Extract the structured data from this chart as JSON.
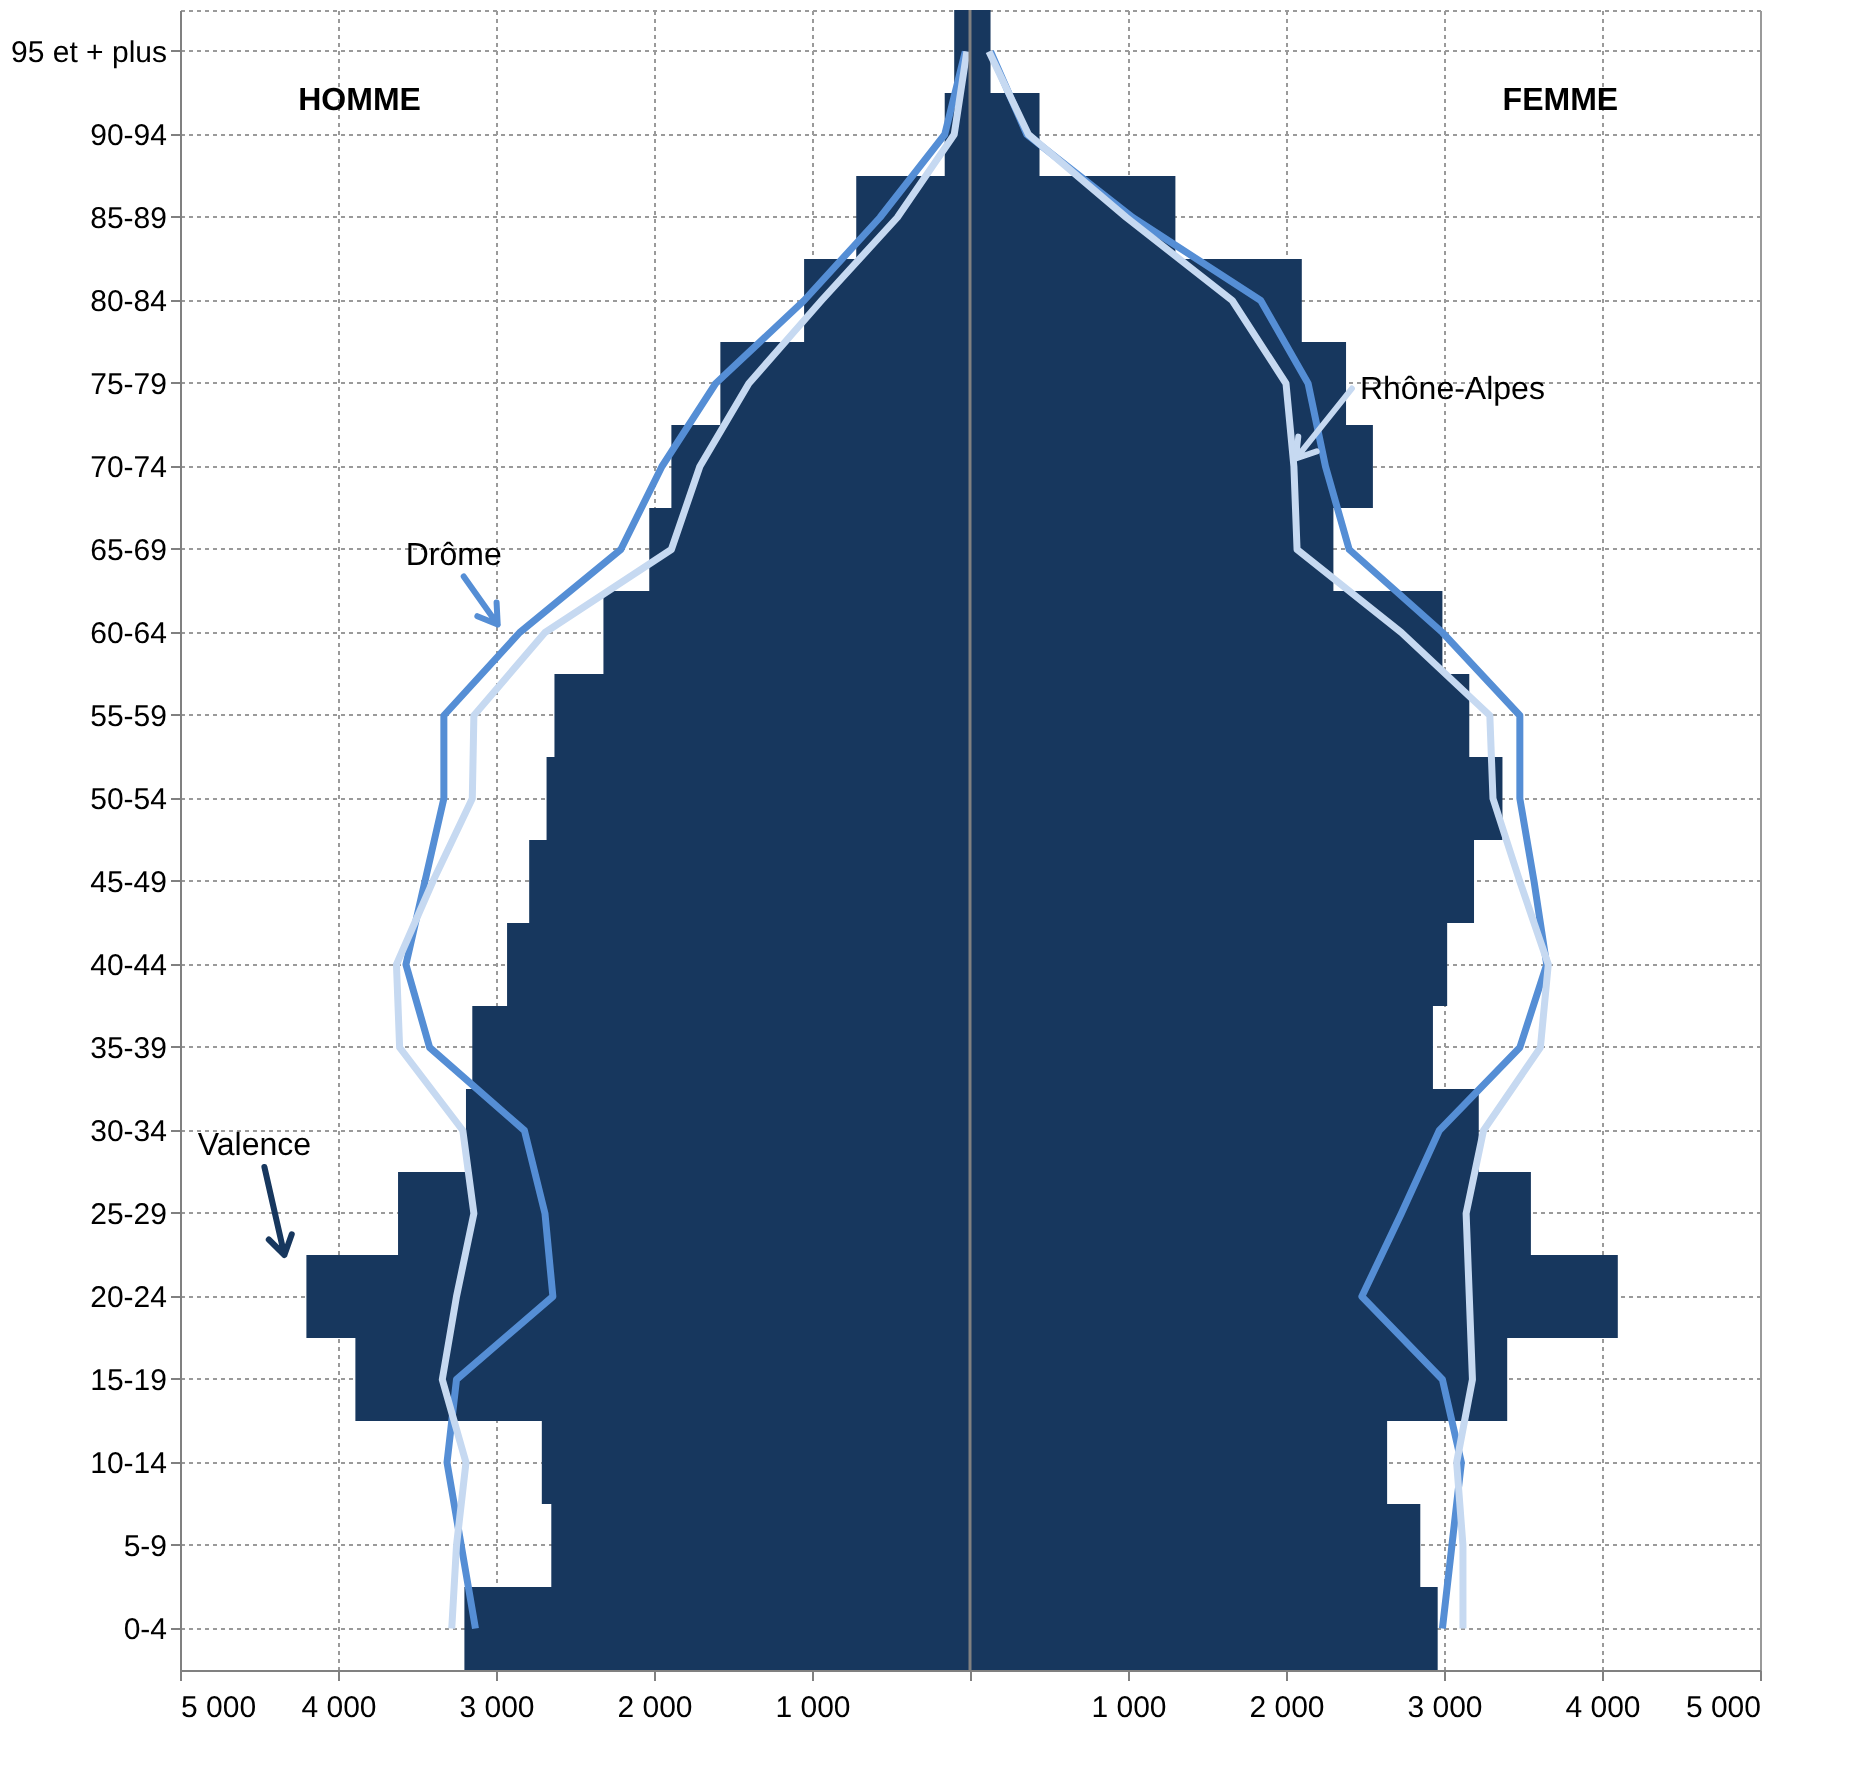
{
  "chart_data": {
    "type": "bar",
    "orientation": "horizontal",
    "categories": [
      "95 et + plus",
      "90-94",
      "85-89",
      "80-84",
      "75-79",
      "70-74",
      "65-69",
      "60-64",
      "55-59",
      "50-54",
      "45-49",
      "40-44",
      "35-39",
      "30-34",
      "25-29",
      "20-24",
      "15-19",
      "10-14",
      "5-9",
      "0-4"
    ],
    "series": [
      {
        "name": "Valence",
        "type": "bar",
        "color": "#17375e",
        "values": [
          -100,
          -160,
          -720,
          -1050,
          -1580,
          -1890,
          -2030,
          -2320,
          -2630,
          -2680,
          -2790,
          -2930,
          -3150,
          -3190,
          -3620,
          -4200,
          -3890,
          -2710,
          -2650,
          -3200
        ]
      },
      {
        "type": "bar",
        "color": "#17375e",
        "values": [
          130,
          440,
          1300,
          2100,
          2380,
          2550,
          2300,
          2990,
          3160,
          3370,
          3190,
          3020,
          2930,
          3220,
          3550,
          4100,
          3400,
          2640,
          2850,
          2960
        ]
      },
      {
        "name": "Drôme",
        "type": "line",
        "color": "#558ed5",
        "values": [
          -30,
          -160,
          -570,
          -1050,
          -1610,
          -1950,
          -2210,
          -2850,
          -3330,
          -3330,
          -3450,
          -3570,
          -3420,
          -2820,
          -2690,
          -2640,
          -3250,
          -3310,
          -3220,
          -3130
        ]
      },
      {
        "type": "line",
        "color": "#558ed5",
        "values": [
          130,
          360,
          1030,
          1840,
          2140,
          2250,
          2400,
          2990,
          3480,
          3480,
          3570,
          3650,
          3480,
          2970,
          2730,
          2480,
          2990,
          3110,
          3050,
          2990
        ]
      },
      {
        "type": "line",
        "color": "#c6d9f1",
        "values": [
          -20,
          -100,
          -460,
          -940,
          -1400,
          -1710,
          -1890,
          -2690,
          -3140,
          -3150,
          -3400,
          -3630,
          -3610,
          -3210,
          -3140,
          -3250,
          -3340,
          -3190,
          -3250,
          -3280
        ]
      },
      {
        "name": "Rhône-Alpes",
        "type": "line",
        "color": "#c6d9f1",
        "values": [
          120,
          370,
          990,
          1660,
          2000,
          2050,
          2070,
          2730,
          3290,
          3310,
          3480,
          3660,
          3610,
          3250,
          3140,
          3160,
          3180,
          3080,
          3120,
          3120
        ]
      }
    ],
    "xlim": [
      -5000,
      5000
    ],
    "xticks": [
      {
        "value": -5000,
        "label": "5 000"
      },
      {
        "value": -4000,
        "label": "4 000"
      },
      {
        "value": -3000,
        "label": "3 000"
      },
      {
        "value": -2000,
        "label": "2 000"
      },
      {
        "value": -1000,
        "label": "1 000"
      },
      {
        "value": 0,
        "label": null
      },
      {
        "value": 1000,
        "label": "1 000"
      },
      {
        "value": 2000,
        "label": "2 000"
      },
      {
        "value": 3000,
        "label": "3 000"
      },
      {
        "value": 4000,
        "label": "4 000"
      },
      {
        "value": 5000,
        "label": "5 000"
      }
    ],
    "ref_lines": [
      {
        "axis": "x",
        "value": 0,
        "color": "#808080"
      }
    ],
    "annotations": [
      "HOMME",
      "FEMME"
    ],
    "stacked": true,
    "grid": true,
    "legend": false,
    "marker": "none",
    "line_style": "solid"
  }
}
